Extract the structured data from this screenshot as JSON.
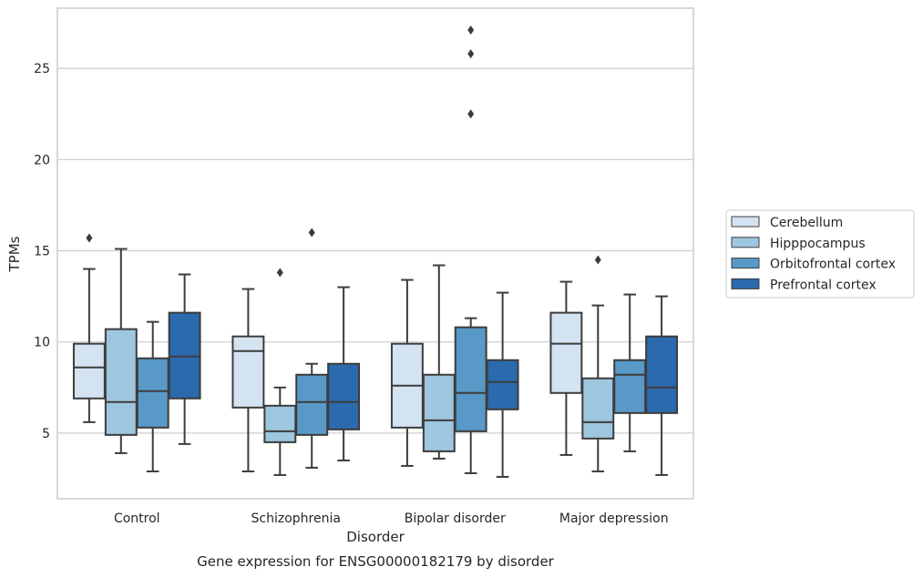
{
  "chart_data": {
    "type": "box",
    "xlabel": "Disorder",
    "ylabel": "TPMs",
    "caption": "Gene expression for ENSG00000182179 by disorder",
    "ylim": [
      1.4,
      28.3
    ],
    "yticks": [
      5,
      10,
      15,
      20,
      25
    ],
    "grid": "horizontal",
    "legend_position": "right",
    "categories": [
      "Control",
      "Schizophrenia",
      "Bipolar disorder",
      "Major depression"
    ],
    "series": [
      {
        "name": "Cerebellum",
        "color": "#d4e3f2",
        "boxes": [
          {
            "whisker_low": 5.6,
            "q1": 6.9,
            "median": 8.6,
            "q3": 9.9,
            "whisker_high": 14.0,
            "outliers": [
              15.7
            ]
          },
          {
            "whisker_low": 2.9,
            "q1": 6.4,
            "median": 9.5,
            "q3": 10.3,
            "whisker_high": 12.9,
            "outliers": []
          },
          {
            "whisker_low": 3.2,
            "q1": 5.3,
            "median": 7.6,
            "q3": 9.9,
            "whisker_high": 13.4,
            "outliers": []
          },
          {
            "whisker_low": 3.8,
            "q1": 7.2,
            "median": 9.9,
            "q3": 11.6,
            "whisker_high": 13.3,
            "outliers": []
          }
        ]
      },
      {
        "name": "Hipppocampus",
        "color": "#9ec6de",
        "boxes": [
          {
            "whisker_low": 3.9,
            "q1": 4.9,
            "median": 6.7,
            "q3": 10.7,
            "whisker_high": 15.1,
            "outliers": []
          },
          {
            "whisker_low": 2.7,
            "q1": 4.5,
            "median": 5.1,
            "q3": 6.5,
            "whisker_high": 7.5,
            "outliers": [
              13.8
            ]
          },
          {
            "whisker_low": 3.6,
            "q1": 4.0,
            "median": 5.7,
            "q3": 8.2,
            "whisker_high": 14.2,
            "outliers": []
          },
          {
            "whisker_low": 2.9,
            "q1": 4.7,
            "median": 5.6,
            "q3": 8.0,
            "whisker_high": 12.0,
            "outliers": [
              14.5
            ]
          }
        ]
      },
      {
        "name": "Orbitofrontal cortex",
        "color": "#5899c7",
        "boxes": [
          {
            "whisker_low": 2.9,
            "q1": 5.3,
            "median": 7.3,
            "q3": 9.1,
            "whisker_high": 11.1,
            "outliers": []
          },
          {
            "whisker_low": 3.1,
            "q1": 4.9,
            "median": 6.7,
            "q3": 8.2,
            "whisker_high": 8.8,
            "outliers": [
              16.0
            ]
          },
          {
            "whisker_low": 2.8,
            "q1": 5.1,
            "median": 7.2,
            "q3": 10.8,
            "whisker_high": 11.3,
            "outliers": [
              22.5,
              25.8,
              27.1
            ]
          },
          {
            "whisker_low": 4.0,
            "q1": 6.1,
            "median": 8.2,
            "q3": 9.0,
            "whisker_high": 12.6,
            "outliers": []
          }
        ]
      },
      {
        "name": "Prefrontal cortex",
        "color": "#2a6aad",
        "boxes": [
          {
            "whisker_low": 4.4,
            "q1": 6.9,
            "median": 9.2,
            "q3": 11.6,
            "whisker_high": 13.7,
            "outliers": []
          },
          {
            "whisker_low": 3.5,
            "q1": 5.2,
            "median": 6.7,
            "q3": 8.8,
            "whisker_high": 13.0,
            "outliers": []
          },
          {
            "whisker_low": 2.6,
            "q1": 6.3,
            "median": 7.8,
            "q3": 9.0,
            "whisker_high": 12.7,
            "outliers": []
          },
          {
            "whisker_low": 2.7,
            "q1": 6.1,
            "median": 7.5,
            "q3": 10.3,
            "whisker_high": 12.5,
            "outliers": []
          }
        ]
      }
    ]
  }
}
